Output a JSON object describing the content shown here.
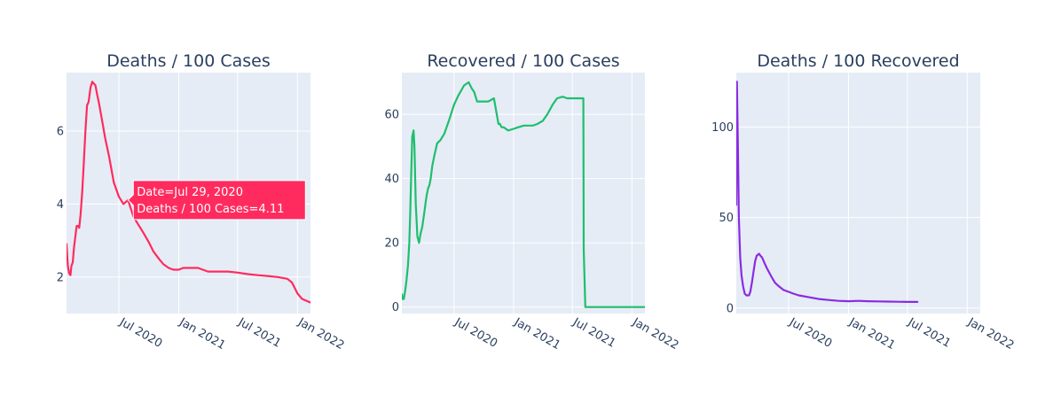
{
  "chart_data": [
    {
      "type": "line",
      "title": "Deaths / 100 Cases",
      "xlabel": "",
      "ylabel": "",
      "color": "#ff2b5e",
      "xlim": [
        "2020-01-22",
        "2022-02-10"
      ],
      "ylim": [
        1.0,
        7.6
      ],
      "y_ticks": [
        2,
        4,
        6
      ],
      "x_ticks": [
        {
          "date": "2020-07-01",
          "label": "Jul 2020"
        },
        {
          "date": "2021-01-01",
          "label": "Jan 2021"
        },
        {
          "date": "2021-07-01",
          "label": "Jul 2021"
        },
        {
          "date": "2022-01-01",
          "label": "Jan 2022"
        }
      ],
      "grid": true,
      "series": [
        {
          "x": [
            "2020-01-22",
            "2020-01-26",
            "2020-01-30",
            "2020-02-03",
            "2020-02-06",
            "2020-02-10",
            "2020-02-14",
            "2020-02-18",
            "2020-02-22",
            "2020-02-26",
            "2020-03-01",
            "2020-03-05",
            "2020-03-10",
            "2020-03-15",
            "2020-03-20",
            "2020-03-25",
            "2020-03-30",
            "2020-04-05",
            "2020-04-10",
            "2020-04-15",
            "2020-04-20",
            "2020-04-25",
            "2020-04-30",
            "2020-05-10",
            "2020-05-20",
            "2020-06-01",
            "2020-06-15",
            "2020-07-01",
            "2020-07-15",
            "2020-07-29",
            "2020-08-15",
            "2020-09-01",
            "2020-09-15",
            "2020-10-01",
            "2020-10-15",
            "2020-11-01",
            "2020-11-15",
            "2020-12-01",
            "2020-12-15",
            "2021-01-01",
            "2021-01-15",
            "2021-02-01",
            "2021-03-01",
            "2021-04-01",
            "2021-05-01",
            "2021-06-01",
            "2021-07-01",
            "2021-08-01",
            "2021-09-01",
            "2021-10-01",
            "2021-11-01",
            "2021-12-01",
            "2021-12-15",
            "2022-01-01",
            "2022-01-15",
            "2022-02-10"
          ],
          "y": [
            2.9,
            2.3,
            2.1,
            2.05,
            2.3,
            2.4,
            2.8,
            3.1,
            3.4,
            3.4,
            3.35,
            3.7,
            4.3,
            5.1,
            6.0,
            6.7,
            6.8,
            7.2,
            7.35,
            7.3,
            7.25,
            7.0,
            6.8,
            6.3,
            5.8,
            5.3,
            4.6,
            4.2,
            4.0,
            4.11,
            3.65,
            3.4,
            3.2,
            2.95,
            2.7,
            2.5,
            2.35,
            2.25,
            2.2,
            2.2,
            2.25,
            2.25,
            2.25,
            2.15,
            2.15,
            2.15,
            2.12,
            2.08,
            2.05,
            2.03,
            2.0,
            1.95,
            1.85,
            1.55,
            1.4,
            1.3
          ]
        }
      ],
      "hover": {
        "line1": "Date=Jul 29, 2020",
        "line2": "Deaths / 100 Cases=4.11",
        "date": "2020-07-29",
        "value": 4.11
      }
    },
    {
      "type": "line",
      "title": "Recovered / 100 Cases",
      "xlabel": "",
      "ylabel": "",
      "color": "#1fbe6e",
      "xlim": [
        "2020-01-22",
        "2022-02-10"
      ],
      "ylim": [
        -2,
        73
      ],
      "y_ticks": [
        0,
        20,
        40,
        60
      ],
      "x_ticks": [
        {
          "date": "2020-07-01",
          "label": "Jul 2020"
        },
        {
          "date": "2021-01-01",
          "label": "Jan 2021"
        },
        {
          "date": "2021-07-01",
          "label": "Jul 2021"
        },
        {
          "date": "2022-01-01",
          "label": "Jan 2022"
        }
      ],
      "grid": true,
      "series": [
        {
          "x": [
            "2020-01-22",
            "2020-01-25",
            "2020-01-28",
            "2020-02-01",
            "2020-02-05",
            "2020-02-10",
            "2020-02-14",
            "2020-02-17",
            "2020-02-20",
            "2020-02-23",
            "2020-02-27",
            "2020-03-01",
            "2020-03-05",
            "2020-03-10",
            "2020-03-15",
            "2020-03-20",
            "2020-03-25",
            "2020-04-01",
            "2020-04-05",
            "2020-04-08",
            "2020-04-12",
            "2020-04-16",
            "2020-04-20",
            "2020-04-25",
            "2020-05-01",
            "2020-05-10",
            "2020-05-20",
            "2020-06-01",
            "2020-06-15",
            "2020-07-01",
            "2020-07-15",
            "2020-08-01",
            "2020-08-15",
            "2020-08-25",
            "2020-09-01",
            "2020-09-10",
            "2020-09-20",
            "2020-10-01",
            "2020-10-15",
            "2020-11-01",
            "2020-11-15",
            "2020-11-20",
            "2020-11-22",
            "2020-11-25",
            "2020-12-01",
            "2020-12-15",
            "2021-01-01",
            "2021-01-15",
            "2021-02-01",
            "2021-02-15",
            "2021-03-01",
            "2021-03-15",
            "2021-04-01",
            "2021-04-15",
            "2021-05-01",
            "2021-05-15",
            "2021-06-01",
            "2021-06-15",
            "2021-07-01",
            "2021-07-20",
            "2021-08-04",
            "2021-08-05",
            "2021-08-10",
            "2021-09-01",
            "2021-10-01",
            "2021-11-01",
            "2021-12-01",
            "2022-01-01",
            "2022-02-10"
          ],
          "y": [
            4,
            2.5,
            2.5,
            5,
            8,
            13,
            20,
            30,
            42,
            53,
            55,
            50,
            32,
            22,
            20,
            23,
            25,
            30,
            33,
            35,
            37,
            38,
            40,
            44,
            47,
            51,
            52,
            54,
            58,
            63,
            66,
            69,
            70,
            68,
            67,
            64,
            64,
            64,
            64,
            65,
            57,
            57,
            56.5,
            56,
            56,
            55,
            55.5,
            56,
            56.5,
            56.5,
            56.5,
            57,
            58,
            60,
            63,
            65,
            65.5,
            65,
            65,
            65,
            65,
            18,
            0,
            0,
            0,
            0,
            0,
            0,
            0
          ]
        }
      ]
    },
    {
      "type": "line",
      "title": "Deaths / 100 Recovered",
      "xlabel": "",
      "ylabel": "",
      "color": "#8a2be2",
      "xlim": [
        "2020-01-22",
        "2022-02-10"
      ],
      "ylim": [
        -3,
        130
      ],
      "y_ticks": [
        0,
        50,
        100
      ],
      "x_ticks": [
        {
          "date": "2020-07-01",
          "label": "Jul 2020"
        },
        {
          "date": "2021-01-01",
          "label": "Jan 2021"
        },
        {
          "date": "2021-07-01",
          "label": "Jul 2021"
        },
        {
          "date": "2022-01-01",
          "label": "Jan 2022"
        }
      ],
      "grid": true,
      "series": [
        {
          "x": [
            "2020-01-22",
            "2020-01-24",
            "2020-01-27",
            "2020-01-30",
            "2020-02-03",
            "2020-02-07",
            "2020-02-12",
            "2020-02-17",
            "2020-02-22",
            "2020-03-01",
            "2020-03-05",
            "2020-03-10",
            "2020-03-15",
            "2020-03-20",
            "2020-03-25",
            "2020-04-01",
            "2020-04-05",
            "2020-04-10",
            "2020-04-15",
            "2020-04-20",
            "2020-04-25",
            "2020-05-01",
            "2020-05-10",
            "2020-05-20",
            "2020-06-01",
            "2020-06-15",
            "2020-07-01",
            "2020-07-15",
            "2020-08-01",
            "2020-09-01",
            "2020-10-01",
            "2020-11-01",
            "2020-12-01",
            "2021-01-01",
            "2021-02-01",
            "2021-03-01",
            "2021-04-01",
            "2021-05-01",
            "2021-06-01",
            "2021-07-01",
            "2021-08-01"
          ],
          "y": [
            57,
            125,
            90,
            50,
            28,
            18,
            12,
            8,
            7,
            7,
            9,
            14,
            20,
            26,
            29,
            30,
            29,
            28,
            26,
            24,
            22,
            20,
            17,
            14,
            12,
            10,
            9,
            8,
            7,
            6,
            5,
            4.5,
            4,
            3.8,
            4,
            3.8,
            3.7,
            3.6,
            3.5,
            3.4,
            3.4
          ]
        }
      ]
    }
  ]
}
